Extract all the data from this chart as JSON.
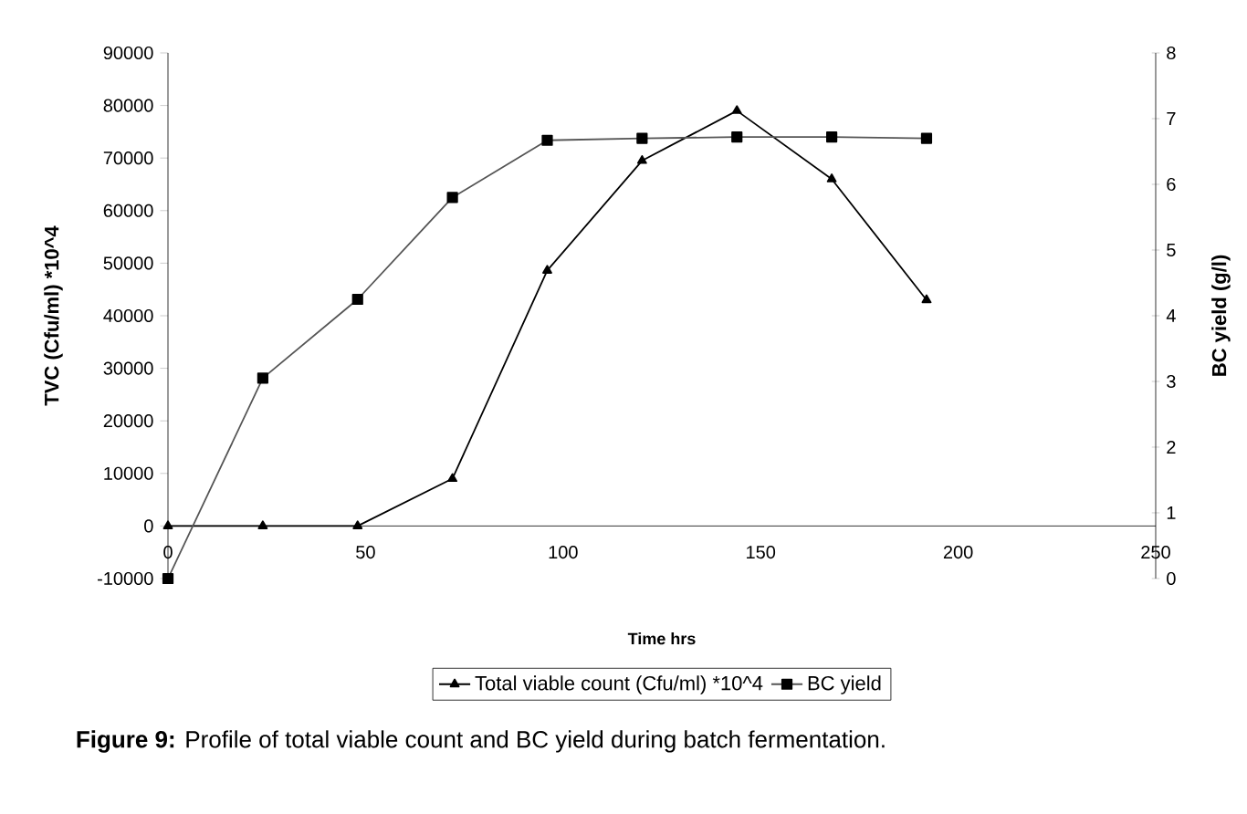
{
  "chart_data": {
    "type": "line",
    "xlabel": "Time hrs",
    "ylabel": "TVC (Cfu/ml) *10^4",
    "y2label": "BC yield (g/l)",
    "x": [
      0,
      24,
      48,
      72,
      96,
      120,
      144,
      168,
      192
    ],
    "series": [
      {
        "name": "Total viable count (Cfu/ml) *10^4",
        "color": "#000000",
        "marker": "triangle",
        "values": [
          0,
          0,
          0,
          9000,
          48600,
          69500,
          79000,
          66000,
          43000
        ]
      },
      {
        "name": "BC yield",
        "color": "#555555",
        "marker": "square",
        "axis": "y2",
        "values": [
          0,
          3.05,
          4.25,
          5.8,
          6.67,
          6.7,
          6.72,
          6.72,
          6.7
        ]
      }
    ],
    "xlim": [
      0,
      250
    ],
    "xticks": [
      0,
      50,
      100,
      150,
      200,
      250
    ],
    "ylim": [
      -10000,
      90000
    ],
    "yticks": [
      -10000,
      0,
      10000,
      20000,
      30000,
      40000,
      50000,
      60000,
      70000,
      80000,
      90000
    ],
    "y2lim": [
      0,
      8
    ],
    "y2ticks": [
      0,
      1,
      2,
      3,
      4,
      5,
      6,
      7,
      8
    ],
    "legend": "bottom",
    "grid": false,
    "line_style": "solid",
    "annotations": [
      "**Figure 9:** Profile of total viable count and BC yield during batch fermentation."
    ]
  }
}
